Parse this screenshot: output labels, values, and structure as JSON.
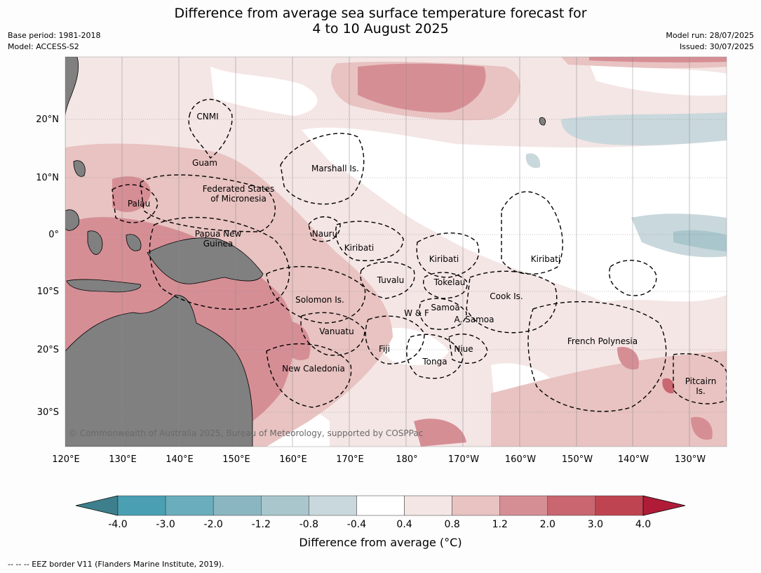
{
  "title": {
    "line1": "Difference from average sea surface temperature forecast for",
    "line2": "4 to 10 August 2025"
  },
  "meta": {
    "base_period": "Base period: 1981-2018",
    "model": "Model: ACCESS-S2",
    "model_run": "Model run: 28/07/2025",
    "issued": "Issued: 30/07/2025"
  },
  "map": {
    "longitude_labels": [
      "120°E",
      "130°E",
      "140°E",
      "150°E",
      "160°E",
      "170°E",
      "180°",
      "170°W",
      "160°W",
      "150°W",
      "140°W",
      "130°W"
    ],
    "latitude_labels": [
      "20°N",
      "10°N",
      "0°",
      "10°S",
      "20°S",
      "30°S"
    ],
    "copyright": "© Commonwealth of Australia 2025, Bureau of Meteorology, supported by COSPPac",
    "land_color": "#808080",
    "places": [
      {
        "id": "cnmi",
        "lines": [
          "CNMI"
        ]
      },
      {
        "id": "guam",
        "lines": [
          "Guam"
        ]
      },
      {
        "id": "marshall",
        "lines": [
          "Marshall Is."
        ]
      },
      {
        "id": "fsm",
        "lines": [
          "Federated States",
          "of Micronesia"
        ]
      },
      {
        "id": "palau",
        "lines": [
          "Palau"
        ]
      },
      {
        "id": "png",
        "lines": [
          "Papua New",
          "Guinea"
        ]
      },
      {
        "id": "nauru",
        "lines": [
          "Nauru"
        ]
      },
      {
        "id": "kiribati1",
        "lines": [
          "Kiribati"
        ]
      },
      {
        "id": "kiribati2",
        "lines": [
          "Kiribati"
        ]
      },
      {
        "id": "kiribati3",
        "lines": [
          "Kiribati"
        ]
      },
      {
        "id": "tuvalu",
        "lines": [
          "Tuvalu"
        ]
      },
      {
        "id": "tokelau",
        "lines": [
          "Tokelau"
        ]
      },
      {
        "id": "solomon",
        "lines": [
          "Solomon Is."
        ]
      },
      {
        "id": "cook",
        "lines": [
          "Cook Is."
        ]
      },
      {
        "id": "samoa",
        "lines": [
          "Samoa"
        ]
      },
      {
        "id": "wf",
        "lines": [
          "W & F"
        ]
      },
      {
        "id": "asamoa",
        "lines": [
          "A. Samoa"
        ]
      },
      {
        "id": "vanuatu",
        "lines": [
          "Vanuatu"
        ]
      },
      {
        "id": "fiji",
        "lines": [
          "Fiji"
        ]
      },
      {
        "id": "niue",
        "lines": [
          "Niue"
        ]
      },
      {
        "id": "frpoly",
        "lines": [
          "French Polynesia"
        ]
      },
      {
        "id": "tonga",
        "lines": [
          "Tonga"
        ]
      },
      {
        "id": "newcal",
        "lines": [
          "New Caledonia"
        ]
      },
      {
        "id": "pitcairn",
        "lines": [
          "Pitcairn",
          "Is."
        ]
      }
    ]
  },
  "colorbar": {
    "ticks": [
      "-4.0",
      "-3.0",
      "-2.0",
      "-1.2",
      "-0.8",
      "-0.4",
      "0.4",
      "0.8",
      "1.2",
      "2.0",
      "3.0",
      "4.0"
    ],
    "colors": [
      "#3d7f8c",
      "#4aa0b2",
      "#6aaebd",
      "#8ab6c2",
      "#a9c6cc",
      "#c9d8dc",
      "#ffffff",
      "#f4e6e5",
      "#e8c3c1",
      "#d68e95",
      "#c96670",
      "#bf4451",
      "#b01c38"
    ],
    "label": "Difference from average (°C)"
  },
  "footnote": "--  --  -- EEZ border V11 (Flanders Marine Institute, 2019)."
}
